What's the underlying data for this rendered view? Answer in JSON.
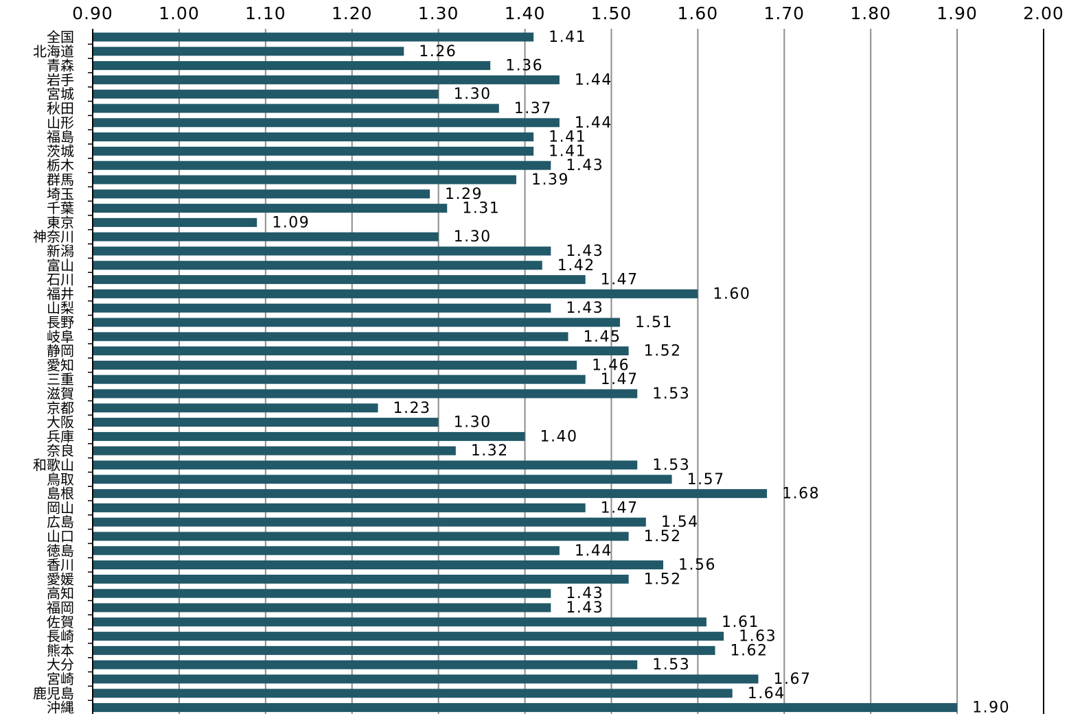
{
  "chart_data": {
    "type": "bar",
    "orientation": "horizontal",
    "title": "",
    "xlabel": "",
    "ylabel": "",
    "xlim": [
      0.9,
      2.0
    ],
    "x_ticks": [
      "0.90",
      "1.00",
      "1.10",
      "1.20",
      "1.30",
      "1.40",
      "1.50",
      "1.60",
      "1.70",
      "1.80",
      "1.90",
      "2.00"
    ],
    "x_axis_position": "top",
    "grid": true,
    "bar_color": "#215968",
    "categories": [
      "全国",
      "北海道",
      "青森",
      "岩手",
      "宮城",
      "秋田",
      "山形",
      "福島",
      "茨城",
      "栃木",
      "群馬",
      "埼玉",
      "千葉",
      "東京",
      "神奈川",
      "新潟",
      "富山",
      "石川",
      "福井",
      "山梨",
      "長野",
      "岐阜",
      "静岡",
      "愛知",
      "三重",
      "滋賀",
      "京都",
      "大阪",
      "兵庫",
      "奈良",
      "和歌山",
      "鳥取",
      "島根",
      "岡山",
      "広島",
      "山口",
      "徳島",
      "香川",
      "愛媛",
      "高知",
      "福岡",
      "佐賀",
      "長崎",
      "熊本",
      "大分",
      "宮崎",
      "鹿児島",
      "沖縄"
    ],
    "values": [
      1.41,
      1.26,
      1.36,
      1.44,
      1.3,
      1.37,
      1.44,
      1.41,
      1.41,
      1.43,
      1.39,
      1.29,
      1.31,
      1.09,
      1.3,
      1.43,
      1.42,
      1.47,
      1.6,
      1.43,
      1.51,
      1.45,
      1.52,
      1.46,
      1.47,
      1.53,
      1.23,
      1.3,
      1.4,
      1.32,
      1.53,
      1.57,
      1.68,
      1.47,
      1.54,
      1.52,
      1.44,
      1.56,
      1.52,
      1.43,
      1.43,
      1.61,
      1.63,
      1.62,
      1.53,
      1.67,
      1.64,
      1.9
    ],
    "value_labels": [
      "1.41",
      "1.26",
      "1.36",
      "1.44",
      "1.30",
      "1.37",
      "1.44",
      "1.41",
      "1.41",
      "1.43",
      "1.39",
      "1.29",
      "1.31",
      "1.09",
      "1.30",
      "1.43",
      "1.42",
      "1.47",
      "1.60",
      "1.43",
      "1.51",
      "1.45",
      "1.52",
      "1.46",
      "1.47",
      "1.53",
      "1.23",
      "1.30",
      "1.40",
      "1.32",
      "1.53",
      "1.57",
      "1.68",
      "1.47",
      "1.54",
      "1.52",
      "1.44",
      "1.56",
      "1.52",
      "1.43",
      "1.43",
      "1.61",
      "1.63",
      "1.62",
      "1.53",
      "1.67",
      "1.64",
      "1.90"
    ]
  }
}
